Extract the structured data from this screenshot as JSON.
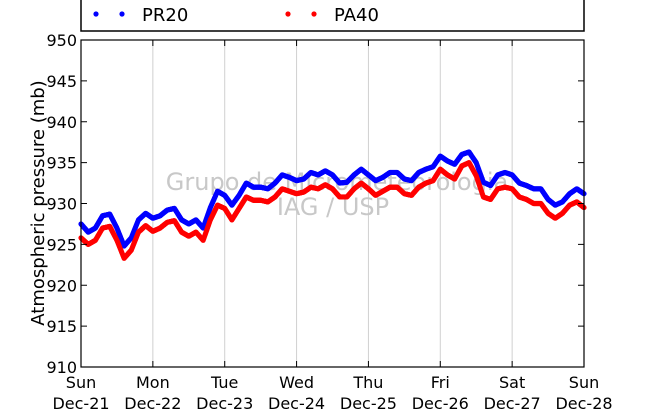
{
  "chart_data": {
    "type": "line",
    "title": "",
    "ylabel": "Atmospheric pressure (mb)",
    "xlabel": "",
    "ylim": [
      910,
      950
    ],
    "yticks": [
      910,
      915,
      920,
      925,
      930,
      935,
      940,
      945,
      950
    ],
    "xlim": [
      0,
      7
    ],
    "xticks": [
      {
        "day": "Sun",
        "date": "Dec-21"
      },
      {
        "day": "Mon",
        "date": "Dec-22"
      },
      {
        "day": "Tue",
        "date": "Dec-23"
      },
      {
        "day": "Wed",
        "date": "Dec-24"
      },
      {
        "day": "Thu",
        "date": "Dec-25"
      },
      {
        "day": "Fri",
        "date": "Dec-26"
      },
      {
        "day": "Sat",
        "date": "Dec-27"
      },
      {
        "day": "Sun",
        "date": "Dec-28"
      }
    ],
    "grid": "vertical",
    "legend_position": "top",
    "watermark": [
      "Grupo de Micrometeorologia",
      "IAG / USP"
    ],
    "series": [
      {
        "name": "PR20",
        "color": "#0000ff",
        "x": [
          0.0,
          0.1,
          0.2,
          0.3,
          0.4,
          0.5,
          0.6,
          0.7,
          0.8,
          0.9,
          1.0,
          1.1,
          1.2,
          1.3,
          1.4,
          1.5,
          1.6,
          1.7,
          1.8,
          1.9,
          2.0,
          2.1,
          2.2,
          2.3,
          2.4,
          2.5,
          2.6,
          2.7,
          2.8,
          2.9,
          3.0,
          3.1,
          3.2,
          3.3,
          3.4,
          3.5,
          3.6,
          3.7,
          3.8,
          3.9,
          4.0,
          4.1,
          4.2,
          4.3,
          4.4,
          4.5,
          4.6,
          4.7,
          4.8,
          4.9,
          5.0,
          5.1,
          5.2,
          5.3,
          5.4,
          5.5,
          5.6,
          5.7,
          5.8,
          5.9,
          6.0,
          6.1,
          6.2,
          6.3,
          6.4,
          6.5,
          6.6,
          6.7,
          6.8,
          6.9,
          7.0
        ],
        "values": [
          927.5,
          926.5,
          927.0,
          928.5,
          928.7,
          927.0,
          924.8,
          925.8,
          928.0,
          928.8,
          928.2,
          928.5,
          929.2,
          929.4,
          928.0,
          927.5,
          928.0,
          927.0,
          929.5,
          931.5,
          931.0,
          929.8,
          931.0,
          932.5,
          932.0,
          932.0,
          931.8,
          932.5,
          933.5,
          933.2,
          932.8,
          933.0,
          933.8,
          933.5,
          934.0,
          933.5,
          932.5,
          932.6,
          933.5,
          934.2,
          933.5,
          932.8,
          933.2,
          933.8,
          933.8,
          933.0,
          932.8,
          933.8,
          934.2,
          934.5,
          935.8,
          935.2,
          934.8,
          936.0,
          936.3,
          935.0,
          932.6,
          932.2,
          933.5,
          933.8,
          933.5,
          932.5,
          932.2,
          931.8,
          931.8,
          930.5,
          929.8,
          930.2,
          931.2,
          931.8,
          931.2
        ]
      },
      {
        "name": "PA40",
        "color": "#ff0000",
        "x": [
          0.0,
          0.1,
          0.2,
          0.3,
          0.4,
          0.5,
          0.6,
          0.7,
          0.8,
          0.9,
          1.0,
          1.1,
          1.2,
          1.3,
          1.4,
          1.5,
          1.6,
          1.7,
          1.8,
          1.9,
          2.0,
          2.1,
          2.2,
          2.3,
          2.4,
          2.5,
          2.6,
          2.7,
          2.8,
          2.9,
          3.0,
          3.1,
          3.2,
          3.3,
          3.4,
          3.5,
          3.6,
          3.7,
          3.8,
          3.9,
          4.0,
          4.1,
          4.2,
          4.3,
          4.4,
          4.5,
          4.6,
          4.7,
          4.8,
          4.9,
          5.0,
          5.1,
          5.2,
          5.3,
          5.4,
          5.5,
          5.6,
          5.7,
          5.8,
          5.9,
          6.0,
          6.1,
          6.2,
          6.3,
          6.4,
          6.5,
          6.6,
          6.7,
          6.8,
          6.9,
          7.0
        ],
        "values": [
          925.8,
          925.0,
          925.5,
          927.0,
          927.2,
          925.5,
          923.3,
          924.3,
          926.5,
          927.3,
          926.6,
          927.0,
          927.7,
          927.9,
          926.5,
          926.0,
          926.5,
          925.5,
          928.0,
          929.8,
          929.4,
          928.0,
          929.4,
          930.8,
          930.4,
          930.4,
          930.2,
          930.8,
          931.8,
          931.5,
          931.2,
          931.4,
          932.0,
          931.8,
          932.3,
          931.8,
          930.8,
          930.8,
          931.8,
          932.5,
          931.8,
          931.0,
          931.5,
          932.0,
          932.0,
          931.2,
          931.0,
          932.0,
          932.5,
          932.8,
          934.2,
          933.5,
          933.0,
          934.6,
          935.0,
          933.4,
          930.8,
          930.5,
          931.8,
          932.0,
          931.8,
          930.8,
          930.5,
          930.0,
          930.0,
          928.8,
          928.2,
          928.8,
          929.8,
          930.2,
          929.5
        ]
      }
    ]
  }
}
